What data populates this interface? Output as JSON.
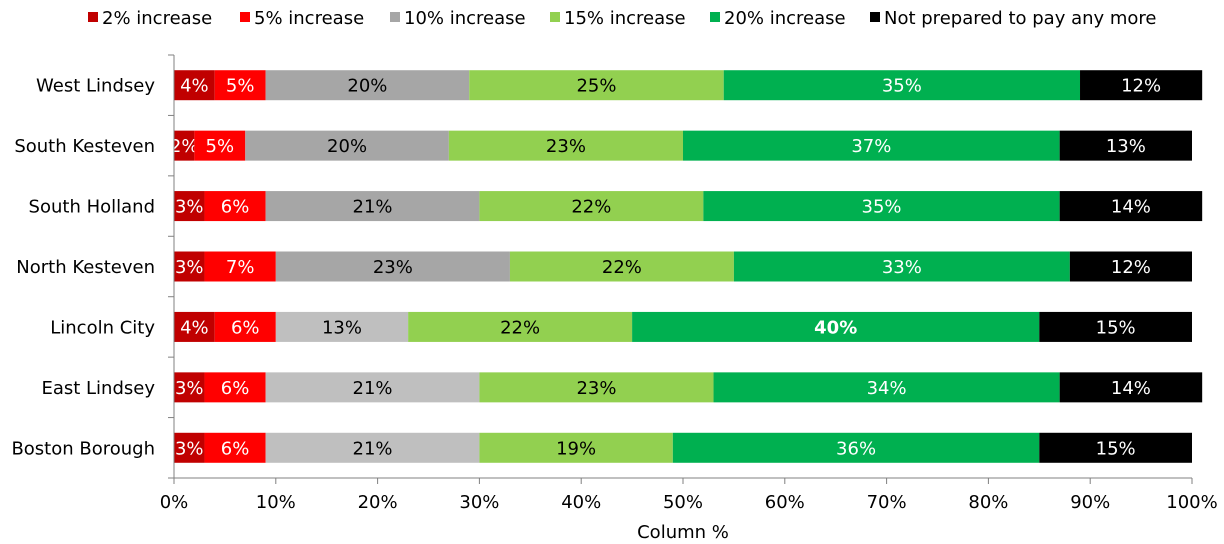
{
  "chart_data": {
    "type": "bar",
    "orientation": "horizontal",
    "stacked": true,
    "xlabel": "Column %",
    "xlim": [
      0,
      100
    ],
    "x_ticks": [
      "0%",
      "10%",
      "20%",
      "30%",
      "40%",
      "50%",
      "60%",
      "70%",
      "80%",
      "90%",
      "100%"
    ],
    "legend_position": "top",
    "grid": false,
    "categories": [
      "West Lindsey",
      "South Kesteven",
      "South Holland",
      "North Kesteven",
      "Lincoln City",
      "East Lindsey",
      "Boston Borough"
    ],
    "series": [
      {
        "name": "2% increase",
        "color": "#c00000",
        "label_color": "#ffffff",
        "values": [
          4,
          2,
          3,
          3,
          4,
          3,
          3
        ],
        "labels": [
          "4%",
          "2%",
          "3%",
          "3%",
          "4%",
          "3%",
          "3%"
        ]
      },
      {
        "name": "5% increase",
        "color": "#ff0000",
        "label_color": "#ffffff",
        "values": [
          5,
          5,
          6,
          7,
          6,
          6,
          6
        ],
        "labels": [
          "5%",
          "5%",
          "6%",
          "7%",
          "6%",
          "6%",
          "6%"
        ]
      },
      {
        "name": "10% increase",
        "color": "#a6a6a6",
        "label_color": "#000000",
        "values": [
          20,
          20,
          21,
          23,
          13,
          21,
          21
        ],
        "labels": [
          "20%",
          "20%",
          "21%",
          "23%",
          "13%",
          "21%",
          "21%"
        ],
        "bar_colors": [
          "#a6a6a6",
          "#a6a6a6",
          "#a6a6a6",
          "#a6a6a6",
          "#bfbfbf",
          "#bfbfbf",
          "#bfbfbf"
        ]
      },
      {
        "name": "15% increase",
        "color": "#92d050",
        "label_color": "#000000",
        "values": [
          25,
          23,
          22,
          22,
          22,
          23,
          19
        ],
        "labels": [
          "25%",
          "23%",
          "22%",
          "22%",
          "22%",
          "23%",
          "19%"
        ]
      },
      {
        "name": "20% increase",
        "color": "#00b050",
        "label_color": "#ffffff",
        "values": [
          35,
          37,
          35,
          33,
          40,
          34,
          36
        ],
        "labels": [
          "35%",
          "37%",
          "35%",
          "33%",
          "40%",
          "34%",
          "36%"
        ],
        "bold_index": 4
      },
      {
        "name": "Not prepared to pay any more",
        "color": "#000000",
        "label_color": "#ffffff",
        "values": [
          12,
          13,
          14,
          12,
          15,
          14,
          15
        ],
        "labels": [
          "12%",
          "13%",
          "14%",
          "12%",
          "15%",
          "14%",
          "15%"
        ]
      }
    ]
  }
}
